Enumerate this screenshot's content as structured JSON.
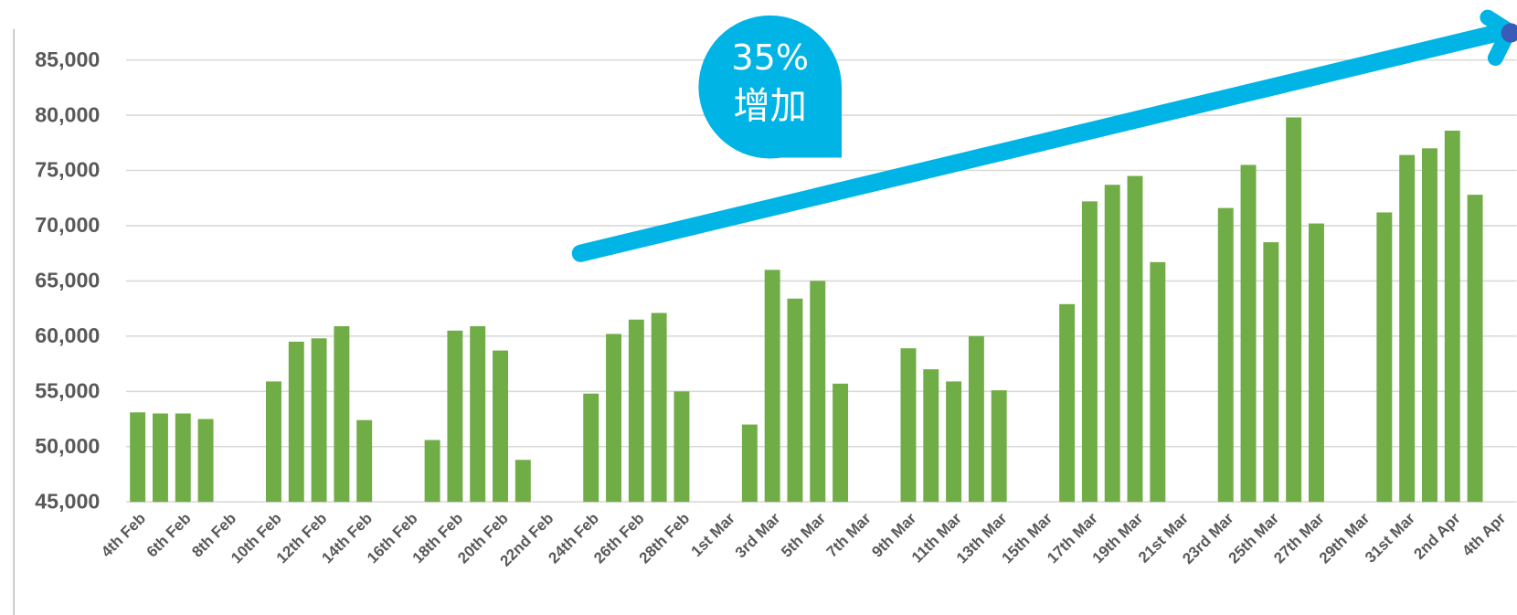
{
  "chart_data": {
    "type": "bar",
    "annotations": [
      "35%",
      "增加"
    ],
    "color": "#70ad47",
    "grid": true,
    "ylim": [
      45000,
      85000
    ],
    "yticks": [
      {
        "value": 45000,
        "label": "45,000"
      },
      {
        "value": 50000,
        "label": "50,000"
      },
      {
        "value": 55000,
        "label": "55,000"
      },
      {
        "value": 60000,
        "label": "60,000"
      },
      {
        "value": 65000,
        "label": "65,000"
      },
      {
        "value": 70000,
        "label": "70,000"
      },
      {
        "value": 75000,
        "label": "75,000"
      },
      {
        "value": 80000,
        "label": "80,000"
      },
      {
        "value": 85000,
        "label": "85,000"
      }
    ],
    "categories": [
      "4th Feb",
      null,
      "6th Feb",
      null,
      "8th Feb",
      null,
      "10th Feb",
      null,
      "12th Feb",
      null,
      "14th Feb",
      null,
      "16th Feb",
      null,
      "18th Feb",
      null,
      "20th Feb",
      null,
      "22nd Feb",
      null,
      "24th Feb",
      null,
      "26th Feb",
      null,
      "28th Feb",
      null,
      "1st Mar",
      null,
      "3rd Mar",
      null,
      "5th Mar",
      null,
      "7th Mar",
      null,
      "9th Mar",
      null,
      "11th Mar",
      null,
      "13th Mar",
      null,
      "15th Mar",
      null,
      "17th Mar",
      null,
      "19th Mar",
      null,
      "21st Mar",
      null,
      "23rd Mar",
      null,
      "25th Mar",
      null,
      "27th Mar",
      null,
      "29th Mar",
      null,
      "31st Mar",
      null,
      "2nd Apr",
      null,
      "4th Apr"
    ],
    "values": [
      53100,
      53000,
      53000,
      52500,
      null,
      null,
      55900,
      59500,
      59800,
      60900,
      52400,
      null,
      null,
      50600,
      60500,
      60900,
      58700,
      48800,
      null,
      null,
      54800,
      60200,
      61500,
      62100,
      55000,
      null,
      null,
      52000,
      66000,
      63400,
      65000,
      55700,
      null,
      null,
      58900,
      57000,
      55900,
      60000,
      55100,
      null,
      null,
      62900,
      72200,
      73700,
      74500,
      66700,
      null,
      null,
      71600,
      75500,
      68500,
      79800,
      70200,
      null,
      null,
      71200,
      76400,
      77000,
      78600,
      72800,
      null
    ]
  }
}
